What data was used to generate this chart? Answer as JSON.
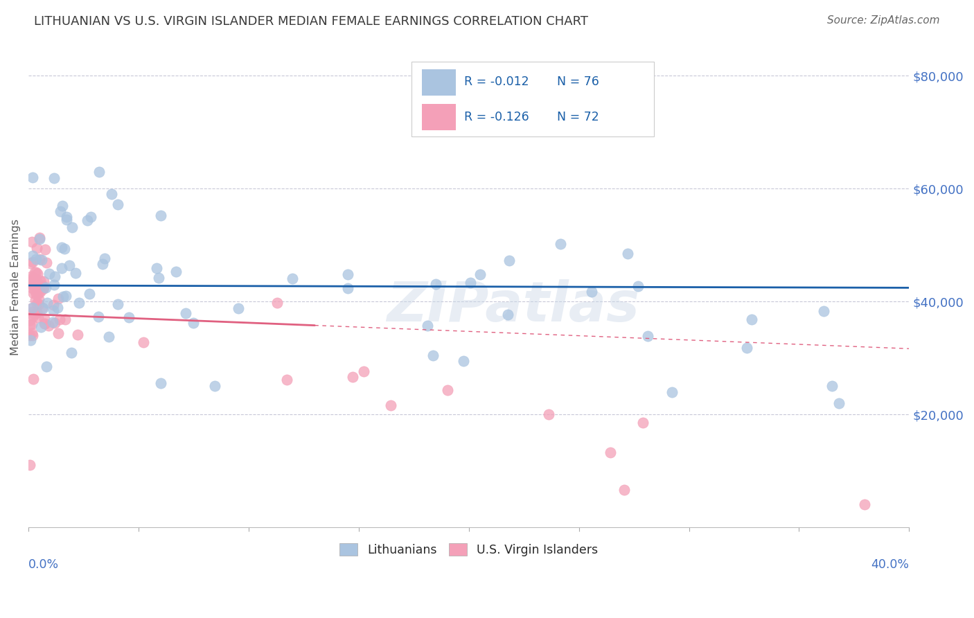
{
  "title": "LITHUANIAN VS U.S. VIRGIN ISLANDER MEDIAN FEMALE EARNINGS CORRELATION CHART",
  "source": "Source: ZipAtlas.com",
  "ylabel": "Median Female Earnings",
  "xlim": [
    0.0,
    0.4
  ],
  "ylim": [
    0,
    85000
  ],
  "legend_r1": "R = -0.012",
  "legend_n1": "N = 76",
  "legend_r2": "R = -0.126",
  "legend_n2": "N = 72",
  "watermark": "ZIPatlas",
  "blue_scatter_color": "#aac4e0",
  "pink_scatter_color": "#f4a0b8",
  "blue_line_color": "#1a5fa8",
  "pink_line_color": "#e06080",
  "title_color": "#3a3a3a",
  "axis_label_color": "#5a5a5a",
  "tick_color": "#4472c4",
  "grid_color": "#c8c8d8",
  "legend_box_color": "#aac4e0",
  "legend_pink_color": "#f4a0b8"
}
